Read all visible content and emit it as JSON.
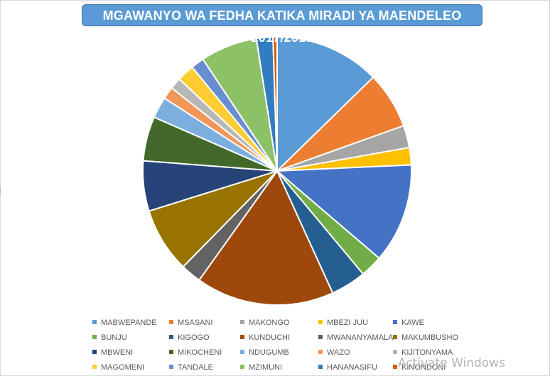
{
  "chart_data": {
    "type": "pie",
    "title": "MGAWANYO WA FEDHA KATIKA MIRADI YA MAENDELEO 2017/2018",
    "legend_placement": "bottom",
    "categories": [
      "MABWEPANDE",
      "MSASANI",
      "MAKONGO",
      "MBEZI JUU",
      "KAWE",
      "BUNJU",
      "KIGOGO",
      "KUNDUCHI",
      "MWANANYAMALA",
      "MAKUMBUSHO",
      "MBWENI",
      "MIKOCHENI",
      "NDUGUMB",
      "WAZO",
      "KIJITONYAMA",
      "MAGOMENI",
      "TANDALE",
      "MZIMUNI",
      "HANANASIFU",
      "KINONDONI"
    ],
    "values": [
      12.8,
      6.9,
      2.7,
      2.1,
      12.1,
      2.7,
      4.3,
      16.8,
      2.5,
      7.9,
      6.1,
      5.4,
      2.6,
      1.5,
      1.4,
      2.1,
      1.6,
      6.9,
      2.0,
      0.5
    ],
    "colors": [
      "#5b9bd5",
      "#ed7d31",
      "#a5a5a5",
      "#ffc000",
      "#4472c4",
      "#70ad47",
      "#255e91",
      "#9e480e",
      "#636363",
      "#997300",
      "#264478",
      "#43682b",
      "#7cafdd",
      "#f1975a",
      "#b7b7b7",
      "#ffcd33",
      "#698ed0",
      "#8cc168",
      "#327dc2",
      "#d26012"
    ]
  },
  "watermark": "Activate Windows"
}
